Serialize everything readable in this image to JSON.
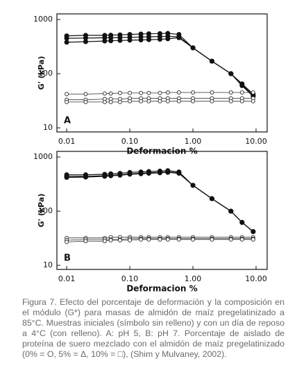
{
  "chart_data": [
    {
      "type": "line",
      "panel_label": "A",
      "xlabel": "Deformacion %",
      "ylabel": "G' (kPa)",
      "xscale": "log",
      "yscale": "log",
      "xlim": [
        0.007,
        15
      ],
      "ylim": [
        8.4,
        1270
      ],
      "xticks": [
        0.01,
        {
          "value": 0.1,
          "label": "0.10"
        },
        {
          "value": 1,
          "label": "1.00"
        },
        {
          "value": 10,
          "label": "10.00"
        }
      ],
      "yticks": [
        10,
        100,
        1000
      ],
      "x": [
        0.01,
        0.02,
        0.04,
        0.05,
        0.07,
        0.1,
        0.15,
        0.2,
        0.3,
        0.4,
        0.6,
        1,
        2,
        4,
        6,
        9
      ],
      "series": [
        {
          "color": "#111",
          "marker_fill": true,
          "values": [
            500,
            510,
            510,
            515,
            520,
            530,
            540,
            545,
            550,
            555,
            530,
            300,
            170,
            100,
            65,
            42
          ]
        },
        {
          "color": "#111",
          "marker_fill": true,
          "values": [
            450,
            455,
            460,
            460,
            465,
            470,
            475,
            480,
            485,
            490,
            480,
            300,
            170,
            100,
            62,
            40
          ]
        },
        {
          "color": "#111",
          "marker_fill": true,
          "values": [
            380,
            390,
            400,
            405,
            410,
            415,
            420,
            425,
            430,
            440,
            460,
            300,
            170,
            100,
            60,
            38
          ]
        },
        {
          "color": "#333",
          "marker_fill": false,
          "values": [
            42,
            42,
            43,
            43,
            44,
            44,
            44,
            44,
            44,
            45,
            45,
            45,
            45,
            45,
            45,
            45
          ]
        },
        {
          "color": "#333",
          "marker_fill": false,
          "values": [
            33,
            33,
            34,
            34,
            34,
            35,
            35,
            35,
            35,
            35,
            35,
            35,
            35,
            35,
            35,
            35
          ]
        },
        {
          "color": "#333",
          "marker_fill": false,
          "values": [
            30,
            30,
            30,
            30,
            30,
            31,
            31,
            31,
            31,
            31,
            31,
            31,
            31,
            31,
            31,
            31
          ]
        }
      ]
    },
    {
      "type": "line",
      "panel_label": "B",
      "xlabel": "Deformacion %",
      "ylabel": "G' (kPa)",
      "xscale": "log",
      "yscale": "log",
      "xlim": [
        0.007,
        15
      ],
      "ylim": [
        8.4,
        1270
      ],
      "xticks": [
        0.01,
        {
          "value": 0.1,
          "label": "0.10"
        },
        {
          "value": 1,
          "label": "1.00"
        },
        {
          "value": 10,
          "label": "10.00"
        }
      ],
      "yticks": [
        10,
        100,
        1000
      ],
      "x": [
        0.01,
        0.02,
        0.04,
        0.05,
        0.07,
        0.1,
        0.15,
        0.2,
        0.3,
        0.4,
        0.6,
        1,
        2,
        4,
        6,
        9
      ],
      "series": [
        {
          "color": "#111",
          "marker_fill": true,
          "values": [
            470,
            470,
            480,
            490,
            500,
            520,
            530,
            540,
            550,
            560,
            530,
            300,
            170,
            100,
            62,
            42
          ]
        },
        {
          "color": "#111",
          "marker_fill": true,
          "values": [
            440,
            440,
            450,
            460,
            470,
            490,
            500,
            510,
            520,
            530,
            510,
            300,
            170,
            100,
            62,
            42
          ]
        },
        {
          "color": "#111",
          "marker_fill": true,
          "values": [
            420,
            425,
            440,
            450,
            460,
            480,
            490,
            500,
            510,
            520,
            500,
            300,
            170,
            100,
            62,
            42
          ]
        },
        {
          "color": "#333",
          "marker_fill": false,
          "values": [
            32,
            32,
            32,
            33,
            33,
            33,
            33,
            33,
            33,
            33,
            33,
            33,
            33,
            33,
            33,
            33
          ]
        },
        {
          "color": "#333",
          "marker_fill": false,
          "values": [
            29,
            30,
            30,
            30,
            30,
            31,
            31,
            31,
            31,
            31,
            31,
            31,
            31,
            31,
            31,
            31
          ]
        },
        {
          "color": "#333",
          "marker_fill": false,
          "values": [
            27,
            28,
            28,
            29,
            29,
            29,
            30,
            30,
            30,
            30,
            30,
            30,
            30,
            30,
            30,
            30
          ]
        }
      ]
    }
  ],
  "caption": "Figura 7. Efecto del porcentaje de deformación y la composición en el módulo (G*)  para masas de almidón de maíz pregelatinizado a 85°C. Muestras iniciales (símbolo sin relleno) y con un día de reposo a 4°C (con relleno). A: pH 5, B: pH 7. Porcentaje de aislado de proteína de suero mezclado con el almidón de maíz pregelatinizado (0% = O, 5% = Δ, 10% = □), (Shim y Mulvaney, 2002)."
}
